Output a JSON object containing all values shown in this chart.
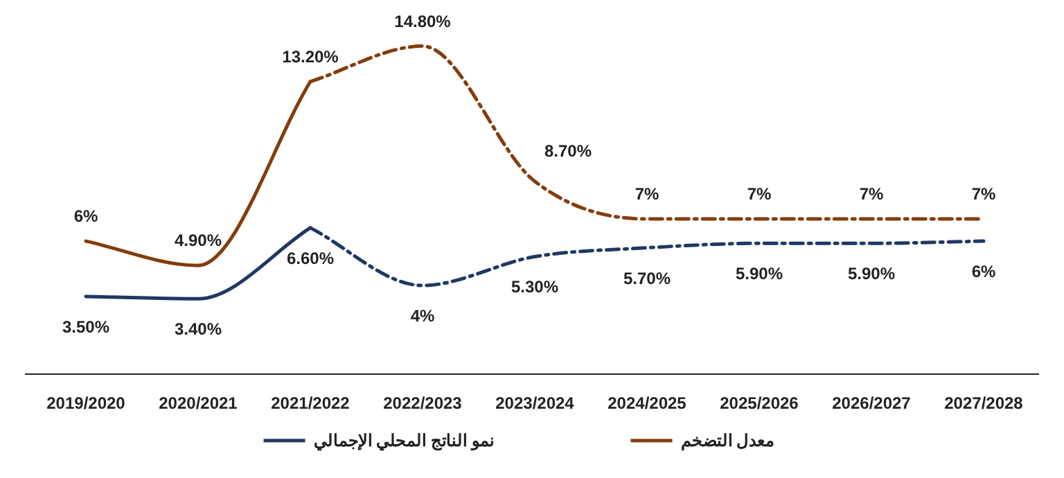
{
  "chart_data": {
    "type": "line",
    "categories": [
      "2019/2020",
      "2020/2021",
      "2021/2022",
      "2022/2023",
      "2023/2024",
      "2024/2025",
      "2025/2026",
      "2026/2027",
      "2027/2028"
    ],
    "tick_labels": "x",
    "legend": "bottom",
    "marker": "none",
    "series": [
      {
        "name": "نمو الناتج المحلي الإجمالي",
        "color": "#1f3864",
        "line_style": "solid",
        "values": [
          3.5,
          3.4,
          6.6,
          null,
          null,
          null,
          null,
          null,
          null
        ],
        "value_labels": [
          "3.50%",
          "3.40%",
          "6.60%",
          null,
          null,
          null,
          null,
          null,
          null
        ]
      },
      {
        "color": "#1f3864",
        "line_style": "dashdot",
        "values": [
          null,
          null,
          6.6,
          4,
          5.3,
          5.7,
          5.9,
          5.9,
          6
        ],
        "value_labels": [
          null,
          null,
          null,
          "4%",
          "5.30%",
          "5.70%",
          "5.90%",
          "5.90%",
          "6%"
        ]
      },
      {
        "name": "معدل التضخم",
        "color": "#843c0c",
        "line_style": "solid",
        "values": [
          6,
          4.9,
          13.2,
          null,
          null,
          null,
          null,
          null,
          null
        ],
        "value_labels": [
          "6%",
          "4.90%",
          "13.20%",
          null,
          null,
          null,
          null,
          null,
          null
        ]
      },
      {
        "color": "#843c0c",
        "line_style": "dashdot",
        "values": [
          null,
          null,
          13.2,
          14.8,
          8.7,
          7,
          7,
          7,
          7
        ],
        "value_labels": [
          null,
          null,
          null,
          "14.80%",
          "8.70%",
          "7%",
          "7%",
          "7%",
          "7%"
        ]
      }
    ]
  }
}
